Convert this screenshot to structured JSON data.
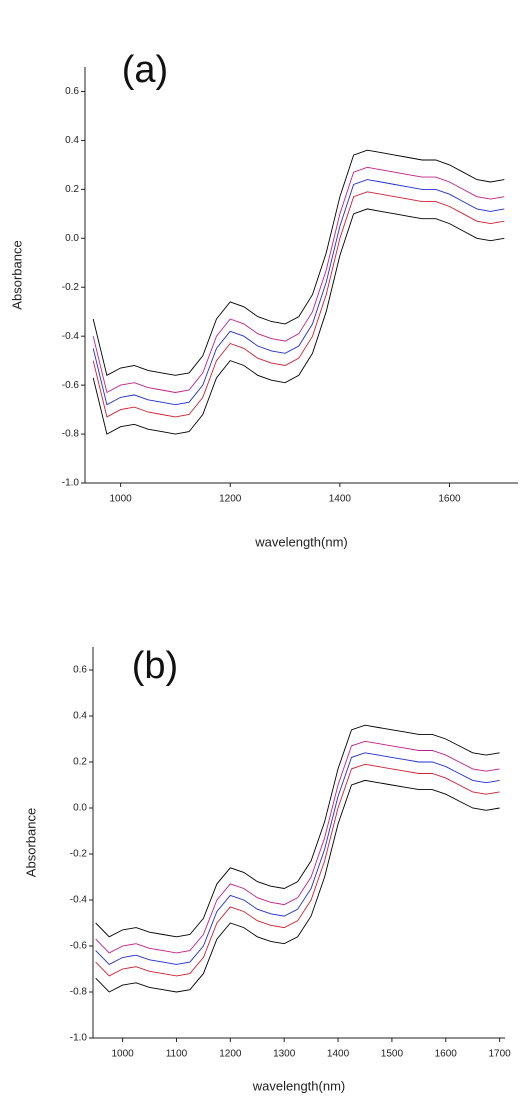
{
  "chart_data": [
    {
      "type": "line",
      "title": "(a)",
      "x_label": "wavelength(nm)",
      "y_label": "Absorbance",
      "x": [
        950,
        975,
        1000,
        1025,
        1050,
        1075,
        1100,
        1125,
        1150,
        1175,
        1200,
        1225,
        1250,
        1275,
        1300,
        1325,
        1350,
        1375,
        1400,
        1425,
        1450,
        1475,
        1500,
        1525,
        1550,
        1575,
        1600,
        1625,
        1650,
        1675,
        1700
      ],
      "series": [
        {
          "color": "#000000",
          "values": [
            -0.33,
            -0.56,
            -0.53,
            -0.52,
            -0.54,
            -0.55,
            -0.56,
            -0.55,
            -0.48,
            -0.33,
            -0.26,
            -0.28,
            -0.32,
            -0.34,
            -0.35,
            -0.32,
            -0.23,
            -0.06,
            0.17,
            0.34,
            0.36,
            0.35,
            0.34,
            0.33,
            0.32,
            0.32,
            0.3,
            0.27,
            0.24,
            0.23,
            0.24
          ]
        },
        {
          "color": "#c0208a",
          "values": [
            -0.4,
            -0.63,
            -0.6,
            -0.59,
            -0.61,
            -0.62,
            -0.63,
            -0.62,
            -0.55,
            -0.4,
            -0.33,
            -0.35,
            -0.39,
            -0.41,
            -0.42,
            -0.39,
            -0.3,
            -0.13,
            0.1,
            0.27,
            0.29,
            0.28,
            0.27,
            0.26,
            0.25,
            0.25,
            0.23,
            0.2,
            0.17,
            0.16,
            0.17
          ]
        },
        {
          "color": "#1f2fd0",
          "values": [
            -0.45,
            -0.68,
            -0.65,
            -0.64,
            -0.66,
            -0.67,
            -0.68,
            -0.67,
            -0.6,
            -0.45,
            -0.38,
            -0.4,
            -0.44,
            -0.46,
            -0.47,
            -0.44,
            -0.35,
            -0.18,
            0.05,
            0.22,
            0.24,
            0.23,
            0.22,
            0.21,
            0.2,
            0.2,
            0.18,
            0.15,
            0.12,
            0.11,
            0.12
          ]
        },
        {
          "color": "#d02030",
          "values": [
            -0.5,
            -0.73,
            -0.7,
            -0.69,
            -0.71,
            -0.72,
            -0.73,
            -0.72,
            -0.65,
            -0.5,
            -0.43,
            -0.45,
            -0.49,
            -0.51,
            -0.52,
            -0.49,
            -0.4,
            -0.23,
            0.0,
            0.17,
            0.19,
            0.18,
            0.17,
            0.16,
            0.15,
            0.15,
            0.13,
            0.1,
            0.07,
            0.06,
            0.07
          ]
        },
        {
          "color": "#000000",
          "values": [
            -0.57,
            -0.8,
            -0.77,
            -0.76,
            -0.78,
            -0.79,
            -0.8,
            -0.79,
            -0.72,
            -0.57,
            -0.5,
            -0.52,
            -0.56,
            -0.58,
            -0.59,
            -0.56,
            -0.47,
            -0.3,
            -0.07,
            0.1,
            0.12,
            0.11,
            0.1,
            0.09,
            0.08,
            0.08,
            0.06,
            0.03,
            0.0,
            -0.01,
            0.0
          ]
        }
      ],
      "xlim": [
        935,
        1725
      ],
      "ylim": [
        -1.0,
        0.7
      ],
      "xticks": [
        1000,
        1200,
        1400,
        1600
      ],
      "yticks": [
        {
          "value": -1.0,
          "label": "-1.0"
        },
        -0.8,
        -0.6,
        -0.4,
        -0.2,
        {
          "value": 0.0,
          "label": "0.0"
        },
        0.2,
        0.4,
        0.6
      ]
    },
    {
      "type": "line",
      "title": "(b)",
      "x_label": "wavelength(nm)",
      "y_label": "Absorbance",
      "x": [
        950,
        975,
        1000,
        1025,
        1050,
        1075,
        1100,
        1125,
        1150,
        1175,
        1200,
        1225,
        1250,
        1275,
        1300,
        1325,
        1350,
        1375,
        1400,
        1425,
        1450,
        1475,
        1500,
        1525,
        1550,
        1575,
        1600,
        1625,
        1650,
        1675,
        1700
      ],
      "series": [
        {
          "color": "#000000",
          "values": [
            -0.5,
            -0.56,
            -0.53,
            -0.52,
            -0.54,
            -0.55,
            -0.56,
            -0.55,
            -0.48,
            -0.33,
            -0.26,
            -0.28,
            -0.32,
            -0.34,
            -0.35,
            -0.32,
            -0.23,
            -0.06,
            0.17,
            0.34,
            0.36,
            0.35,
            0.34,
            0.33,
            0.32,
            0.32,
            0.3,
            0.27,
            0.24,
            0.23,
            0.24
          ]
        },
        {
          "color": "#c0208a",
          "values": [
            -0.57,
            -0.63,
            -0.6,
            -0.59,
            -0.61,
            -0.62,
            -0.63,
            -0.62,
            -0.55,
            -0.4,
            -0.33,
            -0.35,
            -0.39,
            -0.41,
            -0.42,
            -0.39,
            -0.3,
            -0.13,
            0.1,
            0.27,
            0.29,
            0.28,
            0.27,
            0.26,
            0.25,
            0.25,
            0.23,
            0.2,
            0.17,
            0.16,
            0.17
          ]
        },
        {
          "color": "#1f2fd0",
          "values": [
            -0.62,
            -0.68,
            -0.65,
            -0.64,
            -0.66,
            -0.67,
            -0.68,
            -0.67,
            -0.6,
            -0.45,
            -0.38,
            -0.4,
            -0.44,
            -0.46,
            -0.47,
            -0.44,
            -0.35,
            -0.18,
            0.05,
            0.22,
            0.24,
            0.23,
            0.22,
            0.21,
            0.2,
            0.2,
            0.18,
            0.15,
            0.12,
            0.11,
            0.12
          ]
        },
        {
          "color": "#d02030",
          "values": [
            -0.67,
            -0.73,
            -0.7,
            -0.69,
            -0.71,
            -0.72,
            -0.73,
            -0.72,
            -0.65,
            -0.5,
            -0.43,
            -0.45,
            -0.49,
            -0.51,
            -0.52,
            -0.49,
            -0.4,
            -0.23,
            0.0,
            0.17,
            0.19,
            0.18,
            0.17,
            0.16,
            0.15,
            0.15,
            0.13,
            0.1,
            0.07,
            0.06,
            0.07
          ]
        },
        {
          "color": "#000000",
          "values": [
            -0.74,
            -0.8,
            -0.77,
            -0.76,
            -0.78,
            -0.79,
            -0.8,
            -0.79,
            -0.72,
            -0.57,
            -0.5,
            -0.52,
            -0.56,
            -0.58,
            -0.59,
            -0.56,
            -0.47,
            -0.3,
            -0.07,
            0.1,
            0.12,
            0.11,
            0.1,
            0.09,
            0.08,
            0.08,
            0.06,
            0.03,
            0.0,
            -0.01,
            0.0
          ]
        }
      ],
      "xlim": [
        945,
        1710
      ],
      "ylim": [
        -1.0,
        0.7
      ],
      "xticks": [
        1000,
        1100,
        1200,
        1300,
        1400,
        1500,
        1600,
        1700
      ],
      "yticks": [
        {
          "value": -1.0,
          "label": "-1.0"
        },
        -0.8,
        -0.6,
        -0.4,
        -0.2,
        {
          "value": 0.0,
          "label": "0.0"
        },
        0.2,
        0.4,
        0.6
      ]
    }
  ]
}
